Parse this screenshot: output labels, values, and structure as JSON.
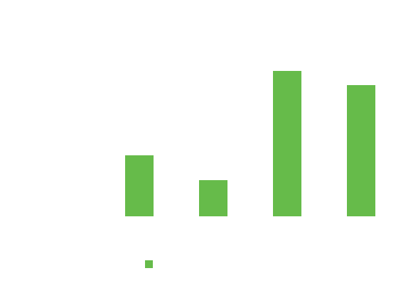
{
  "chart_data": {
    "type": "bar",
    "categories": [
      null,
      null,
      null,
      null,
      null
    ],
    "values": [
      null,
      86,
      51,
      205,
      185
    ],
    "color": "#66bb4a",
    "ylim": [
      0,
      260
    ]
  }
}
